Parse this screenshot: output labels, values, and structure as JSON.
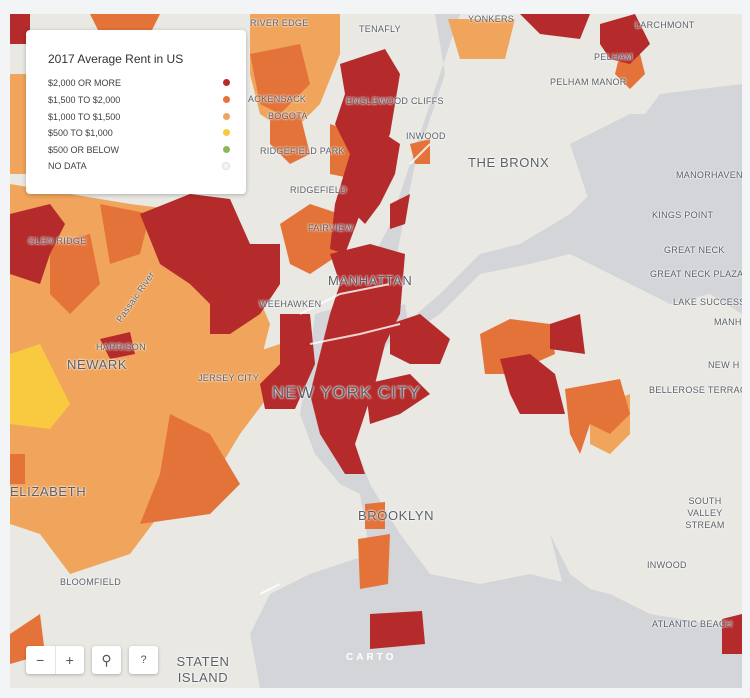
{
  "legend": {
    "title": "2017 Average Rent in US",
    "items": [
      {
        "label": "$2,000 OR MORE",
        "color": "#b52a2a"
      },
      {
        "label": "$1,500 TO $2,000",
        "color": "#e4733a"
      },
      {
        "label": "$1,000 TO $1,500",
        "color": "#f0a45c"
      },
      {
        "label": "$500 TO $1,000",
        "color": "#f9c940"
      },
      {
        "label": "$500 OR BELOW",
        "color": "#8db75a"
      },
      {
        "label": "NO DATA",
        "color": "#eeeeee"
      }
    ]
  },
  "places": {
    "river_edge": "RIVER EDGE",
    "tenafly": "TENAFLY",
    "yonkers": "YONKERS",
    "larchmont": "LARCHMONT",
    "pelham": "PELHAM",
    "pelham_manor": "PELHAM MANOR",
    "hackensack": "ACKENSACK",
    "englewood_cliffs": "ENGLEWOOD CLIFFS",
    "bogota": "BOGOTA",
    "inwood": "INWOOD",
    "ridgefield_park": "RIDGEFIELD PARK",
    "the_bronx": "THE BRONX",
    "manorhaven": "MANORHAVEN",
    "ridgefield": "RIDGEFIELD",
    "kings_point": "KINGS POINT",
    "glen_ridge": "GLEN RIDGE",
    "fairview": "FAIRVIEW",
    "great_neck": "GREAT NECK",
    "great_neck_plaza": "GREAT NECK PLAZA",
    "manhattan": "MANHATTAN",
    "weehawken": "WEEHAWKEN",
    "lake_success": "LAKE SUCCESS",
    "harrison": "HARRISON",
    "newark": "NEWARK",
    "jersey_city": "JERSEY CITY",
    "new_york_city": "NEW YORK CITY",
    "bellerose_terrace": "BELLEROSE TERRACE",
    "elizabeth": "ELIZABETH",
    "brooklyn": "BROOKLYN",
    "south_valley_stream": "SOUTH VALLEY STREAM",
    "bloomfield": "BLOOMFIELD",
    "inwood_ny": "INWOOD",
    "atlantic_beach": "ATLANTIC BEACH",
    "staten_island": "STATEN ISLAND",
    "passaic_river": "Passaic River",
    "manh": "MANH",
    "new_h": "NEW H"
  },
  "controls": {
    "zoom_out": "−",
    "zoom_in": "+",
    "search": "⚲",
    "help": "?"
  },
  "attribution": "CARTO"
}
